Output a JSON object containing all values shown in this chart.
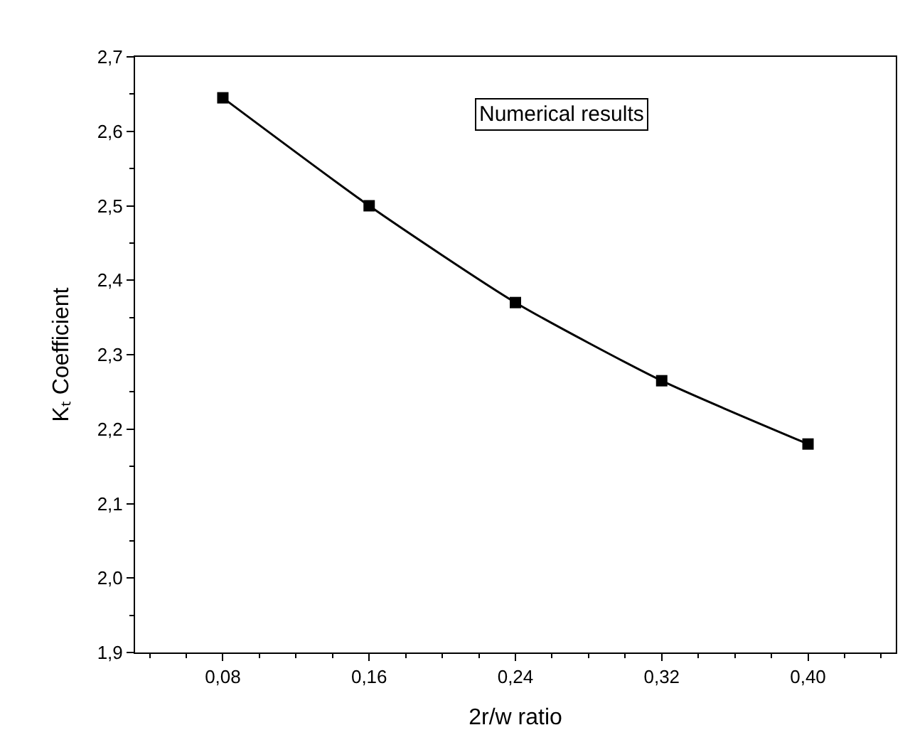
{
  "chart_data": {
    "type": "line",
    "xlabel": "2r/w ratio",
    "ylabel": "Kₜ Coefficient",
    "x": [
      0.08,
      0.16,
      0.24,
      0.32,
      0.4
    ],
    "series": [
      {
        "color": "#000000",
        "values": [
          2.645,
          2.5,
          2.37,
          2.265,
          2.18
        ]
      }
    ],
    "marker": "square",
    "line_style": "solid",
    "annotations": [
      "Numerical results"
    ],
    "xlim": [
      0.032,
      0.448
    ],
    "xticks": [
      {
        "value": 0.08,
        "label": "0,08"
      },
      {
        "value": 0.16,
        "label": "0,16"
      },
      {
        "value": 0.24,
        "label": "0,24"
      },
      {
        "value": 0.32,
        "label": "0,32"
      },
      {
        "value": 0.4,
        "label": "0,40"
      }
    ],
    "ylim": [
      1.9,
      2.7
    ],
    "yticks": [
      {
        "value": 1.9,
        "label": "1,9"
      },
      {
        "value": 2.0,
        "label": "2,0"
      },
      {
        "value": 2.1,
        "label": "2,1"
      },
      {
        "value": 2.2,
        "label": "2,2"
      },
      {
        "value": 2.3,
        "label": "2,3"
      },
      {
        "value": 2.4,
        "label": "2,4"
      },
      {
        "value": 2.5,
        "label": "2,5"
      },
      {
        "value": 2.6,
        "label": "2,6"
      },
      {
        "value": 2.7,
        "label": "2,7"
      }
    ]
  }
}
